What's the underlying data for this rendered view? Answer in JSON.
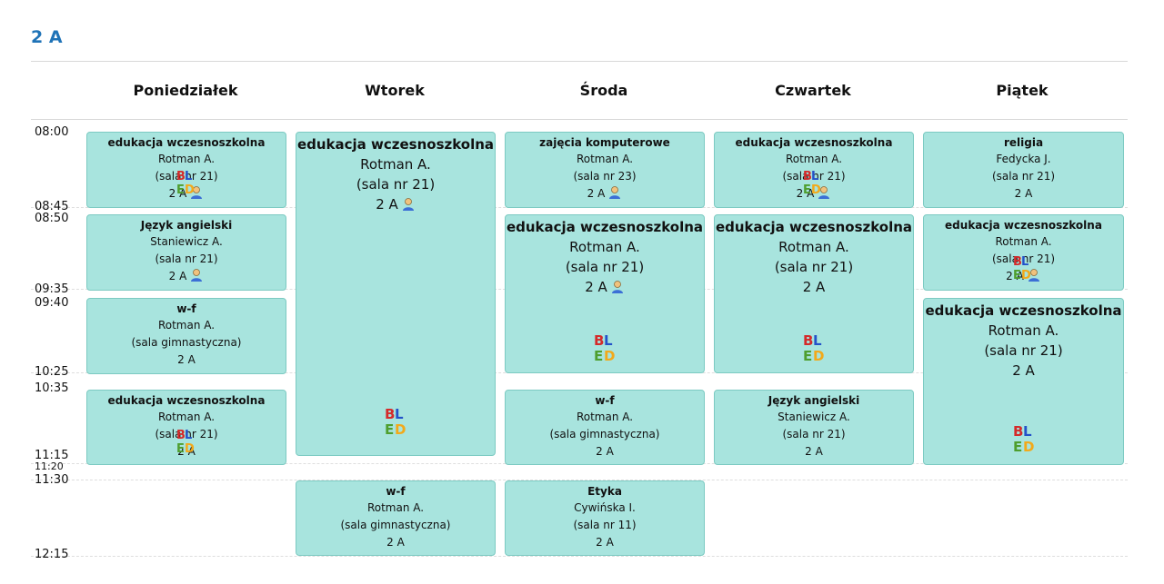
{
  "class_title": "2 A",
  "days": [
    "Poniedziałek",
    "Wtorek",
    "Środa",
    "Czwartek",
    "Piątek"
  ],
  "times": {
    "t0800": "08:00",
    "t0845": "08:45",
    "t0850": "08:50",
    "t0935": "09:35",
    "t0940": "09:40",
    "t1025": "10:25",
    "t1035": "10:35",
    "t1115": "11:15",
    "t1120": "11:20",
    "t1130": "11:30",
    "t1215": "12:15"
  },
  "lessons": {
    "mon1": {
      "subject": "edukacja wczesnoszkolna",
      "teacher": "Rotman A.",
      "room": "(sala nr 21)",
      "group": "2 A"
    },
    "mon2": {
      "subject": "Język angielski",
      "teacher": "Staniewicz A.",
      "room": "(sala nr 21)",
      "group": "2 A"
    },
    "mon3": {
      "subject": "w-f",
      "teacher": "Rotman A.",
      "room": "(sala gimnastyczna)",
      "group": "2 A"
    },
    "mon4": {
      "subject": "edukacja wczesnoszkolna",
      "teacher": "Rotman A.",
      "room": "(sala nr 21)",
      "group": "2 A"
    },
    "tue1": {
      "subject": "edukacja wczesnoszkolna",
      "teacher": "Rotman A.",
      "room": "(sala nr 21)",
      "group": "2 A"
    },
    "tue2": {
      "subject": "w-f",
      "teacher": "Rotman A.",
      "room": "(sala gimnastyczna)",
      "group": "2 A"
    },
    "wed1": {
      "subject": "zajęcia komputerowe",
      "teacher": "Rotman A.",
      "room": "(sala nr 23)",
      "group": "2 A"
    },
    "wed2": {
      "subject": "edukacja wczesnoszkolna",
      "teacher": "Rotman A.",
      "room": "(sala nr 21)",
      "group": "2 A"
    },
    "wed3": {
      "subject": "w-f",
      "teacher": "Rotman A.",
      "room": "(sala gimnastyczna)",
      "group": "2 A"
    },
    "wed4": {
      "subject": "Etyka",
      "teacher": "Cywińska I.",
      "room": "(sala nr 11)",
      "group": "2 A"
    },
    "thu1": {
      "subject": "edukacja wczesnoszkolna",
      "teacher": "Rotman A.",
      "room": "(sala nr 21)",
      "group": "2 A"
    },
    "thu2": {
      "subject": "edukacja wczesnoszkolna",
      "teacher": "Rotman A.",
      "room": "(sala nr 21)",
      "group": "2 A"
    },
    "thu3": {
      "subject": "Język angielski",
      "teacher": "Staniewicz A.",
      "room": "(sala nr 21)",
      "group": "2 A"
    },
    "fri1": {
      "subject": "religia",
      "teacher": "Fedycka J.",
      "room": "(sala nr 21)",
      "group": "2 A"
    },
    "fri2": {
      "subject": "edukacja wczesnoszkolna",
      "teacher": "Rotman A.",
      "room": "(sala nr 21)",
      "group": "2 A"
    },
    "fri3": {
      "subject": "edukacja wczesnoszkolna",
      "teacher": "Rotman A.",
      "room": "(sala nr 21)",
      "group": "2 A"
    }
  },
  "logo": {
    "b": "B",
    "l": "L",
    "e": "E",
    "d": "D"
  }
}
